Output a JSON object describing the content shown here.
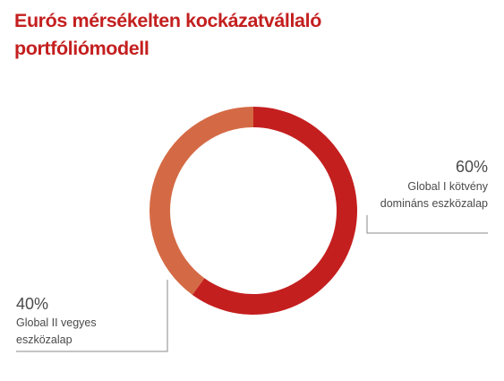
{
  "title": {
    "line1": "Eurós mérsékelten kockázatvállaló",
    "line2": "portfóliómodell"
  },
  "chart_data": {
    "type": "pie",
    "variant": "donut",
    "title": "Eurós mérsékelten kockázatvállaló portfóliómodell",
    "categories": [
      "Global I kötvény domináns eszközalap",
      "Global II vegyes eszközalap"
    ],
    "values": [
      60,
      40
    ],
    "value_labels": [
      "60%",
      "40%"
    ],
    "label_lines": [
      [
        "Global I kötvény",
        "domináns eszközalap"
      ],
      [
        "Global II vegyes",
        "eszközalap"
      ]
    ],
    "colors": [
      "#c41f1f",
      "#d46a45"
    ],
    "legend": "none"
  }
}
